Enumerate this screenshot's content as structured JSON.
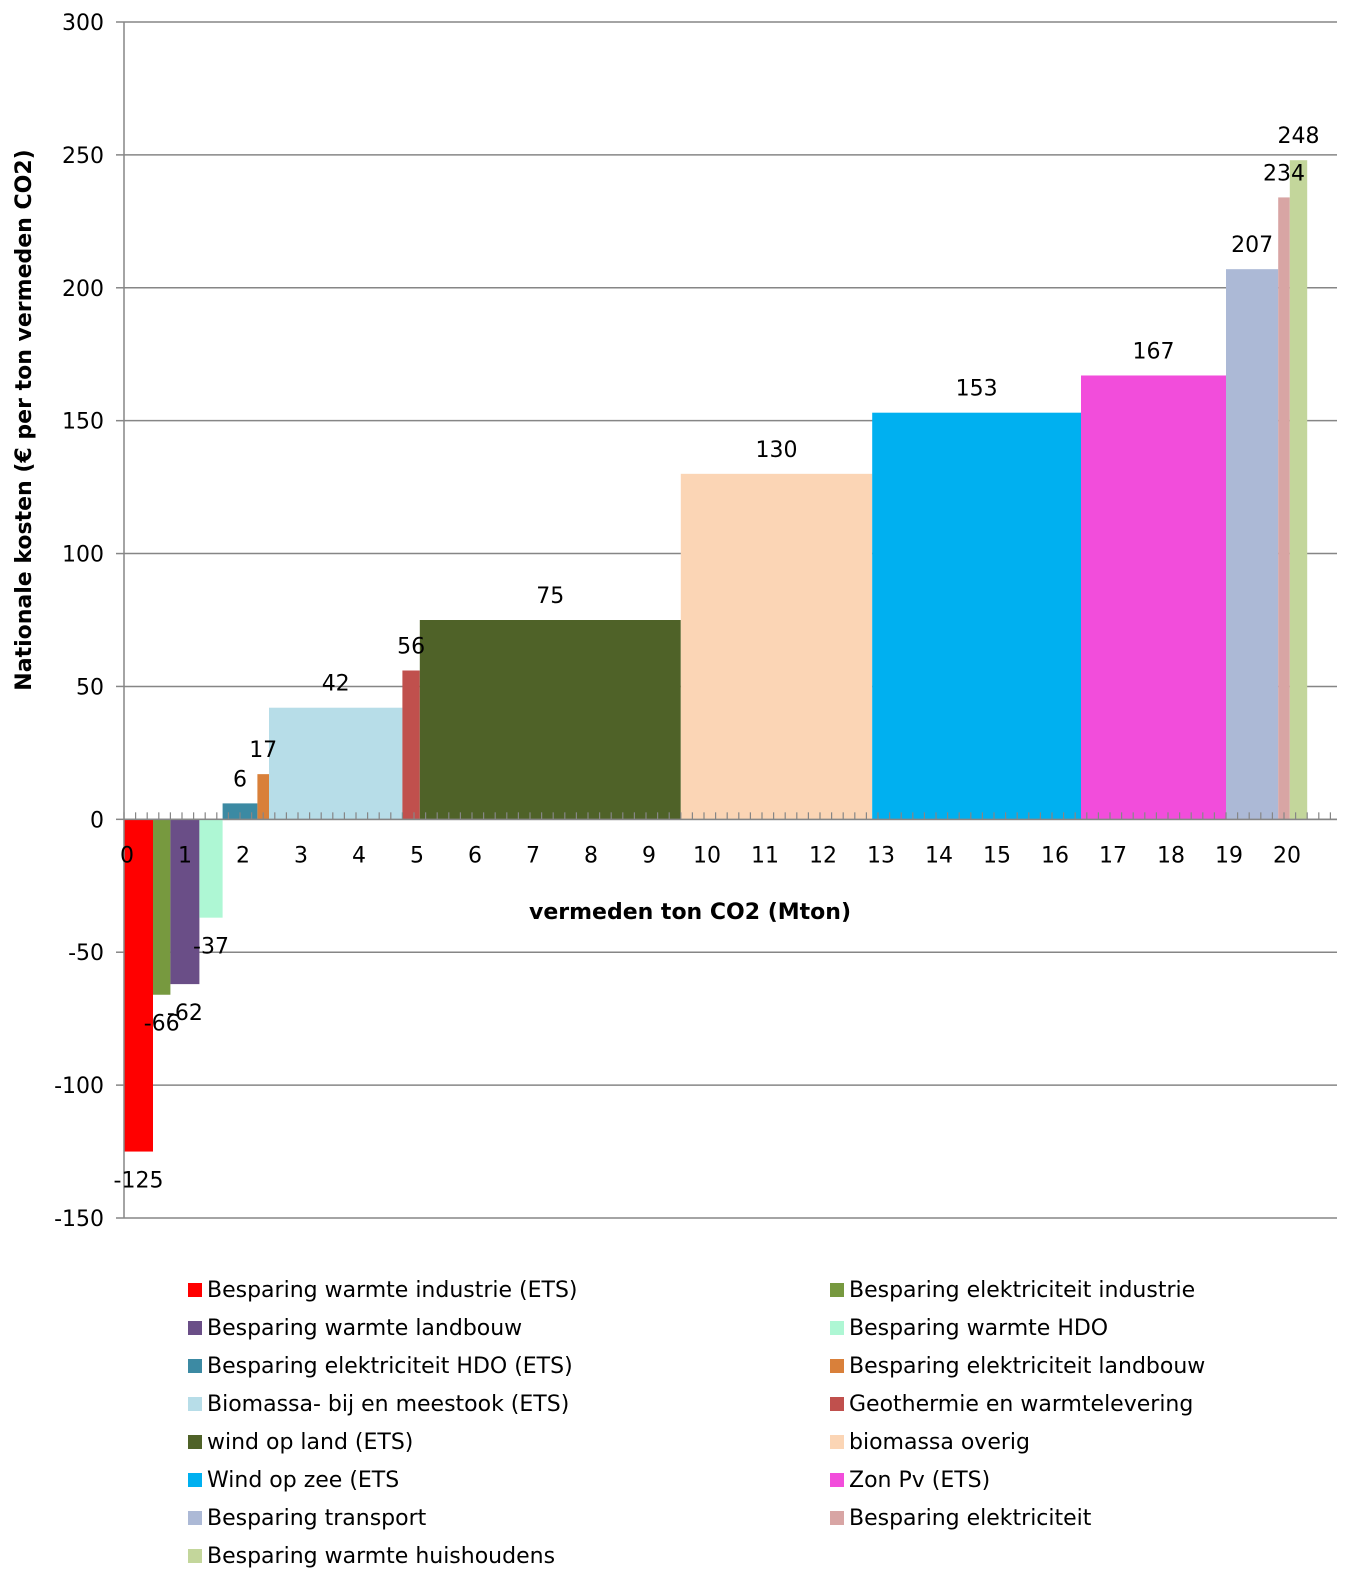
{
  "chart_data": {
    "type": "bar",
    "xlabel": "vermeden ton CO2 (Mton)",
    "ylabel": "Nationale kosten (€ per ton vermeden CO2)",
    "ylim": [
      -150,
      300
    ],
    "yticks": [
      -150,
      -100,
      -50,
      0,
      50,
      100,
      150,
      200,
      250,
      300
    ],
    "xlim": [
      0,
      20.7
    ],
    "xticks": [
      0,
      1,
      2,
      3,
      4,
      5,
      6,
      7,
      8,
      9,
      10,
      11,
      12,
      13,
      14,
      15,
      16,
      17,
      18,
      19,
      20
    ],
    "grid": true,
    "legend_position": "bottom",
    "series": [
      {
        "name": "Besparing warmte industrie (ETS)",
        "x_start": 0.0,
        "x_end": 0.5,
        "value": -125,
        "label": "-125",
        "color": "#ff0000"
      },
      {
        "name": "Besparing elektriciteit industrie",
        "x_start": 0.5,
        "x_end": 0.8,
        "value": -66,
        "label": "-66",
        "color": "#77993f"
      },
      {
        "name": "Besparing warmte landbouw",
        "x_start": 0.8,
        "x_end": 1.3,
        "value": -62,
        "label": "-62",
        "color": "#6a4e87"
      },
      {
        "name": "Besparing warmte HDO",
        "x_start": 1.3,
        "x_end": 1.7,
        "value": -37,
        "label": "-37",
        "color": "#aef7d4"
      },
      {
        "name": "Besparing elektriciteit HDO (ETS)",
        "x_start": 1.7,
        "x_end": 2.3,
        "value": 6,
        "label": "6",
        "color": "#3c8aa3"
      },
      {
        "name": "Besparing elektriciteit landbouw",
        "x_start": 2.3,
        "x_end": 2.5,
        "value": 17,
        "label": "17",
        "color": "#d9803a"
      },
      {
        "name": "Biomassa- bij en meestook (ETS)",
        "x_start": 2.5,
        "x_end": 4.8,
        "value": 42,
        "label": "42",
        "color": "#b7dde8"
      },
      {
        "name": "Geothermie en warmtelevering",
        "x_start": 4.8,
        "x_end": 5.1,
        "value": 56,
        "label": "56",
        "color": "#c0504d"
      },
      {
        "name": "wind op land (ETS)",
        "x_start": 5.1,
        "x_end": 9.6,
        "value": 75,
        "label": "75",
        "color": "#4f6228"
      },
      {
        "name": "biomassa overig",
        "x_start": 9.6,
        "x_end": 12.9,
        "value": 130,
        "label": "130",
        "color": "#fbd5b5"
      },
      {
        "name": "Wind op zee (ETS",
        "x_start": 12.9,
        "x_end": 16.5,
        "value": 153,
        "label": "153",
        "color": "#00b0f0"
      },
      {
        "name": "Zon Pv (ETS)",
        "x_start": 16.5,
        "x_end": 19.0,
        "value": 167,
        "label": "167",
        "color": "#f24ddb"
      },
      {
        "name": "Besparing transport",
        "x_start": 19.0,
        "x_end": 19.9,
        "value": 207,
        "label": "207",
        "color": "#acb9d6"
      },
      {
        "name": "Besparing elektriciteit",
        "x_start": 19.9,
        "x_end": 20.1,
        "value": 234,
        "label": "234",
        "color": "#d8a5a4"
      },
      {
        "name": "Besparing warmte huishoudens",
        "x_start": 20.1,
        "x_end": 20.4,
        "value": 248,
        "label": "248",
        "color": "#c3d69b"
      }
    ]
  }
}
